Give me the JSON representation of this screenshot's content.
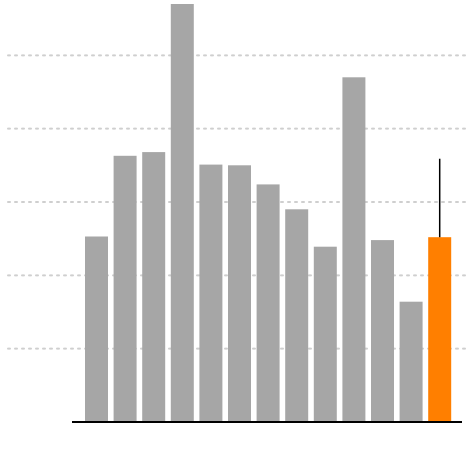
{
  "chart_data": {
    "type": "bar",
    "categories": [
      "",
      "",
      "",
      "",
      "",
      "",
      "",
      "",
      "",
      "",
      "",
      "",
      ""
    ],
    "values": [
      2.53,
      3.63,
      3.68,
      5.7,
      3.51,
      3.5,
      3.24,
      2.9,
      2.39,
      4.7,
      2.48,
      1.64,
      2.52
    ],
    "highlight_index": 12,
    "highlight_error": {
      "low": 2.52,
      "high": 3.59
    },
    "ylim": [
      0,
      5.7
    ],
    "gridlines": [
      1,
      2,
      3,
      4,
      5
    ],
    "grid": true,
    "title": "",
    "xlabel": "",
    "ylabel": "",
    "colors": {
      "bar": "#a6a6a6",
      "highlight": "#ff7f00",
      "grid": "#cfcfcf",
      "axis": "#000000"
    }
  }
}
